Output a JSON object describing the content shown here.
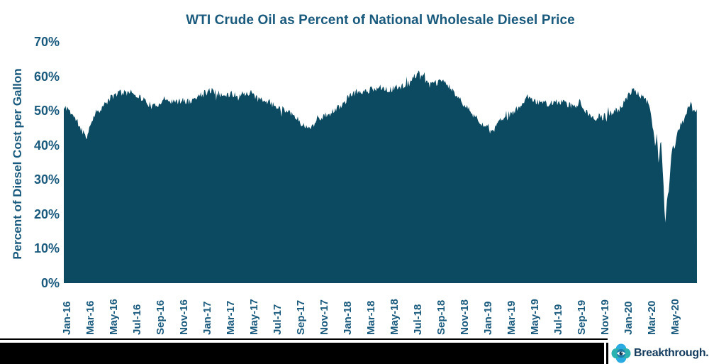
{
  "chart_data": {
    "type": "area",
    "title": "WTI Crude Oil as Percent of National Wholesale Diesel Price",
    "ylabel": "Percent of Diesel Cost per Gallon",
    "xlabel": "",
    "ylim": [
      0,
      70
    ],
    "grid": false,
    "legend": "none",
    "ytick_labels": [
      "70%",
      "60%",
      "50%",
      "40%",
      "30%",
      "20%",
      "10%",
      "0%"
    ],
    "ytick_values": [
      70,
      60,
      50,
      40,
      30,
      20,
      10,
      0
    ],
    "xtick_labels": [
      "Jan-16",
      "Mar-16",
      "May-16",
      "Jul-16",
      "Sep-16",
      "Nov-16",
      "Jan-17",
      "Mar-17",
      "May-17",
      "Jul-17",
      "Sep-17",
      "Nov-17",
      "Jan-18",
      "Mar-18",
      "May-18",
      "Jul-18",
      "Sep-18",
      "Nov-18",
      "Jan-19",
      "Mar-19",
      "May-19",
      "Jul-19",
      "Sep-19",
      "Nov-19",
      "Jan-20",
      "Mar-20",
      "May-20"
    ],
    "xtick_month_step": 2,
    "colors": {
      "area_fill": "#0B4A61",
      "axis_text": "#1A5A7D"
    },
    "noise_amplitude": 1.0,
    "noise_seed": 11,
    "series": [
      {
        "name": "WTI Crude Oil as Percent of National Wholesale Diesel Price",
        "unit": "percent of diesel cost per gallon",
        "x_unit": "months since Jan-2016 (daily series, anchor estimates)",
        "anchor_points": [
          [
            -0.3,
            50.5
          ],
          [
            0,
            51
          ],
          [
            0.4,
            49
          ],
          [
            0.8,
            47
          ],
          [
            1.3,
            44
          ],
          [
            1.7,
            42.5
          ],
          [
            2,
            46.5
          ],
          [
            2.4,
            49.5
          ],
          [
            3,
            51
          ],
          [
            3.5,
            53
          ],
          [
            4,
            54.5
          ],
          [
            4.5,
            55.5
          ],
          [
            5,
            55
          ],
          [
            5.3,
            56
          ],
          [
            5.8,
            55
          ],
          [
            6.2,
            54
          ],
          [
            6.8,
            52.5
          ],
          [
            7.3,
            51
          ],
          [
            7.8,
            52
          ],
          [
            8.2,
            53.5
          ],
          [
            8.8,
            53
          ],
          [
            9.3,
            52.5
          ],
          [
            10,
            53
          ],
          [
            10.5,
            52.5
          ],
          [
            11,
            54
          ],
          [
            11.6,
            55
          ],
          [
            12,
            55.5
          ],
          [
            12.4,
            56
          ],
          [
            13,
            55
          ],
          [
            13.5,
            54
          ],
          [
            14,
            55
          ],
          [
            14.6,
            54.5
          ],
          [
            15.2,
            55
          ],
          [
            15.6,
            55.5
          ],
          [
            16,
            54
          ],
          [
            16.6,
            53
          ],
          [
            17.2,
            52.5
          ],
          [
            17.8,
            51.5
          ],
          [
            18.3,
            50.5
          ],
          [
            18.8,
            50.3
          ],
          [
            19.3,
            49
          ],
          [
            19.8,
            47
          ],
          [
            20.3,
            45.5
          ],
          [
            20.6,
            44.8
          ],
          [
            21,
            46
          ],
          [
            21.5,
            47.8
          ],
          [
            22,
            48.5
          ],
          [
            22.6,
            49.5
          ],
          [
            23.2,
            51
          ],
          [
            23.7,
            52.5
          ],
          [
            24.2,
            54.5
          ],
          [
            24.7,
            55.5
          ],
          [
            25.2,
            55.5
          ],
          [
            25.8,
            56
          ],
          [
            26.3,
            56.5
          ],
          [
            27,
            57
          ],
          [
            27.5,
            56
          ],
          [
            28,
            56.5
          ],
          [
            28.6,
            57.2
          ],
          [
            29.2,
            58
          ],
          [
            29.7,
            60
          ],
          [
            30.1,
            61.3
          ],
          [
            30.4,
            60
          ],
          [
            30.8,
            57.5
          ],
          [
            31.3,
            57.8
          ],
          [
            31.8,
            58.3
          ],
          [
            32.2,
            58.8
          ],
          [
            32.6,
            57
          ],
          [
            33,
            55.5
          ],
          [
            33.5,
            53.5
          ],
          [
            34,
            51.5
          ],
          [
            34.5,
            49.5
          ],
          [
            35,
            48
          ],
          [
            35.5,
            46.2
          ],
          [
            36,
            44.5
          ],
          [
            36.3,
            43.2
          ],
          [
            36.7,
            45.8
          ],
          [
            37.1,
            47.5
          ],
          [
            37.6,
            48.5
          ],
          [
            38.1,
            49.5
          ],
          [
            38.6,
            51
          ],
          [
            39.1,
            53.3
          ],
          [
            39.5,
            54.3
          ],
          [
            40,
            53
          ],
          [
            40.6,
            52.3
          ],
          [
            41.2,
            52
          ],
          [
            41.8,
            52.6
          ],
          [
            42.4,
            52.3
          ],
          [
            43,
            51.5
          ],
          [
            43.5,
            50.8
          ],
          [
            43.8,
            54
          ],
          [
            44.1,
            50.5
          ],
          [
            44.6,
            49
          ],
          [
            45.1,
            47.6
          ],
          [
            45.6,
            48
          ],
          [
            46.1,
            48.6
          ],
          [
            46.7,
            49.6
          ],
          [
            47.2,
            50.6
          ],
          [
            47.7,
            53
          ],
          [
            48.1,
            55.3
          ],
          [
            48.4,
            56
          ],
          [
            48.8,
            54.8
          ],
          [
            49.2,
            53.8
          ],
          [
            49.6,
            52.4
          ],
          [
            49.9,
            49.5
          ],
          [
            50.1,
            44
          ],
          [
            50.25,
            39.5
          ],
          [
            50.4,
            43
          ],
          [
            50.55,
            33.5
          ],
          [
            50.7,
            42.5
          ],
          [
            50.85,
            36
          ],
          [
            51,
            25
          ],
          [
            51.1,
            16.5
          ],
          [
            51.25,
            23.5
          ],
          [
            51.45,
            28
          ],
          [
            51.6,
            36.5
          ],
          [
            51.75,
            40.5
          ],
          [
            51.9,
            38.5
          ],
          [
            52.1,
            44
          ],
          [
            52.4,
            46
          ],
          [
            52.7,
            47.5
          ],
          [
            53,
            50
          ],
          [
            53.3,
            52.3
          ],
          [
            53.55,
            49.5
          ],
          [
            53.8,
            50
          ]
        ]
      }
    ]
  },
  "footer": {
    "brand": "Breakthrough.",
    "bottom_bar_color": "#000000",
    "logo_colors": {
      "petal_blue": "#29ABE2",
      "petal_teal": "#2CB1B1",
      "center": "#1E7FAC",
      "eye_white": "#FFFFFF",
      "pupil": "#11374F"
    }
  }
}
